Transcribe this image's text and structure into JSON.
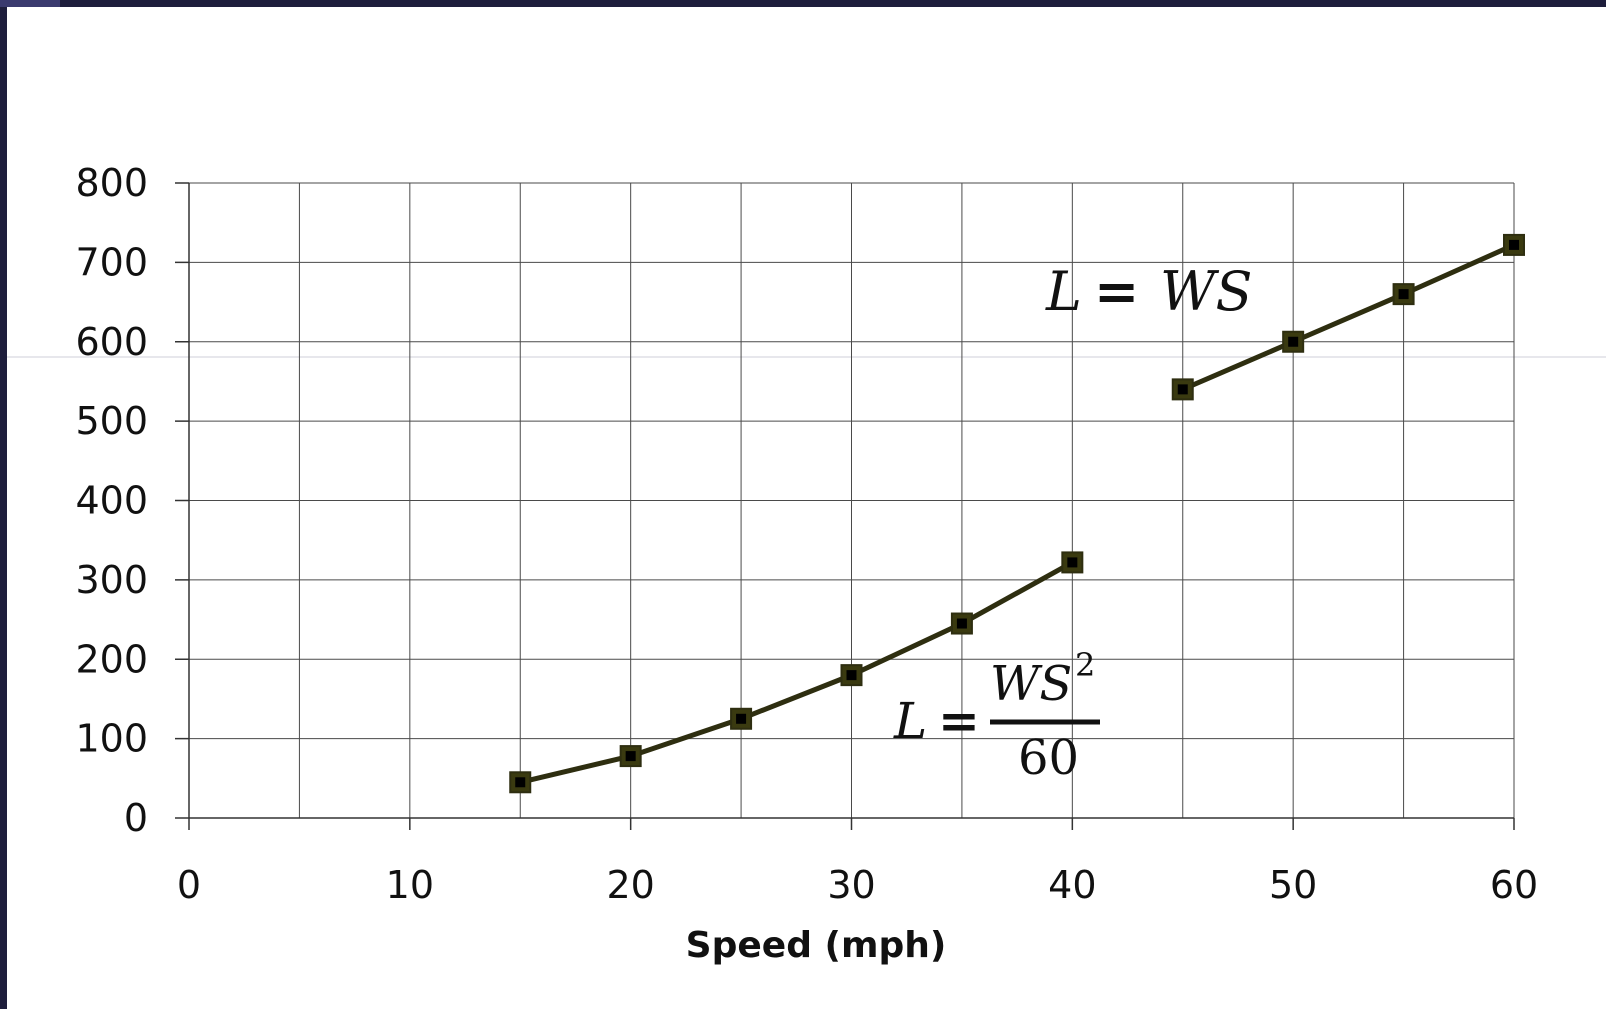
{
  "colors": {
    "frame_dark": "#1e1e3c",
    "frame_accent": "#3a3a6e",
    "series_line": "#2e2e10",
    "marker_fill": "#3a3a10",
    "marker_core": "#000000",
    "grid": "#4a4a4a"
  },
  "chart_data": {
    "type": "line",
    "xlabel": "Speed (mph)",
    "ylabel": "",
    "xlim": [
      0,
      60
    ],
    "ylim": [
      0,
      800
    ],
    "x_ticks": [
      "0",
      "10",
      "20",
      "30",
      "40",
      "50",
      "60"
    ],
    "y_ticks": [
      "0",
      "100",
      "200",
      "300",
      "400",
      "500",
      "600",
      "700",
      "800"
    ],
    "grid": true,
    "legend": "none",
    "series": [
      {
        "x": [
          15,
          20,
          25,
          30,
          35,
          40
        ],
        "y": [
          45,
          78,
          125,
          180,
          245,
          322
        ],
        "marker": "square"
      },
      {
        "x": [
          45,
          50,
          55,
          60
        ],
        "y": [
          540,
          600,
          660,
          722
        ],
        "marker": "square"
      }
    ],
    "annotations": {
      "formula_linear": {
        "lhs": "L",
        "eq": "=",
        "rhs": "WS"
      },
      "formula_quadratic": {
        "lhs": "L",
        "eq": "=",
        "numerator": "WS",
        "exponent": "2",
        "denominator": "60"
      }
    }
  }
}
